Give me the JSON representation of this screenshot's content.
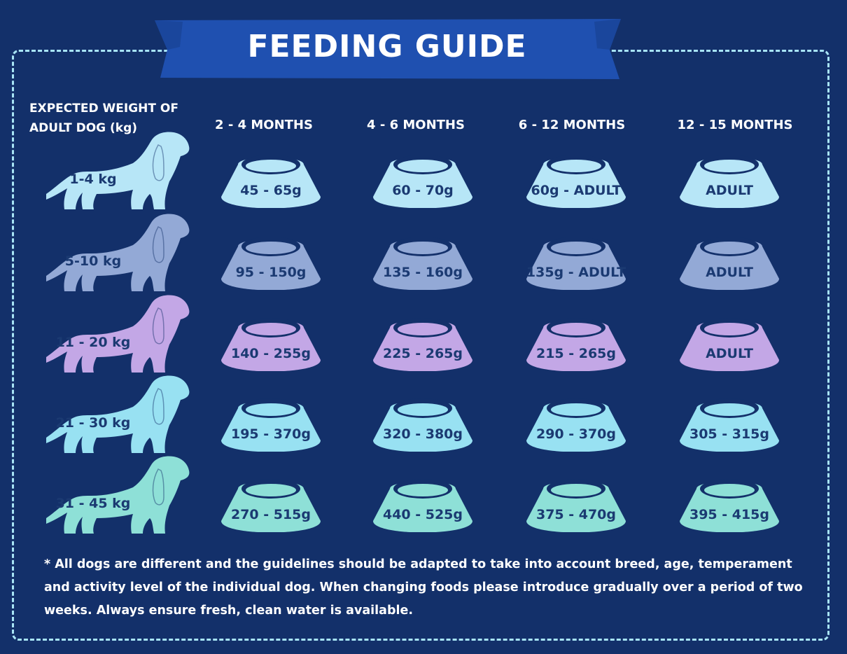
{
  "title": "FEEDING GUIDE",
  "weight_header": "EXPECTED WEIGHT OF ADULT DOG (kg)",
  "age_columns": [
    "2 - 4 MONTHS",
    "4 - 6 MONTHS",
    "6 - 12 MONTHS",
    "12 - 15 MONTHS"
  ],
  "rows": [
    {
      "weight": "1-4 kg",
      "color": "#b7e6f7",
      "amounts": [
        "45 - 65g",
        "60 - 70g",
        "60g - ADULT",
        "ADULT"
      ]
    },
    {
      "weight": "5-10 kg",
      "color": "#93a9d6",
      "amounts": [
        "95 - 150g",
        "135 - 160g",
        "135g - ADULT",
        "ADULT"
      ]
    },
    {
      "weight": "11 - 20 kg",
      "color": "#c3a7e6",
      "amounts": [
        "140 - 255g",
        "225 - 265g",
        "215 - 265g",
        "ADULT"
      ]
    },
    {
      "weight": "21 - 30 kg",
      "color": "#98e1f2",
      "amounts": [
        "195 - 370g",
        "320 - 380g",
        "290 - 370g",
        "305 - 315g"
      ]
    },
    {
      "weight": "31 - 45 kg",
      "color": "#8ee0d7",
      "amounts": [
        "270 - 515g",
        "440 - 525g",
        "375 - 470g",
        "395 - 415g"
      ]
    }
  ],
  "footnote": "* All dogs are different and the guidelines should be adapted to take into account breed, age, temperament and activity level of the individual dog. When changing foods please introduce gradually over a period of two weeks. Always ensure fresh, clean water is available.",
  "colors": {
    "background": "#13306a",
    "banner": "#1f50b0",
    "banner_dark": "#163c88",
    "text_dark": "#1b3a72",
    "dashed_border": "#a8e4f5"
  }
}
